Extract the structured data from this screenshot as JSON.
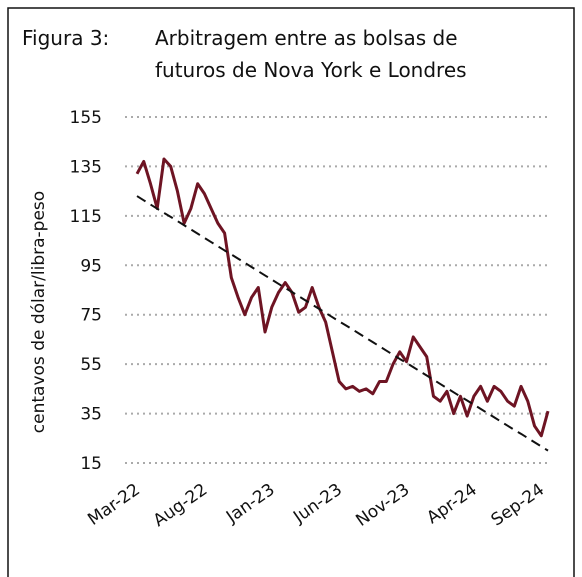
{
  "chart_data": {
    "type": "line",
    "figure_label": "Figura 3:",
    "title": [
      "Arbitragem entre as bolsas de",
      "futuros de Nova York e Londres"
    ],
    "y_label": "centavos de dólar/libra-peso",
    "categories": [
      "Mar-22",
      null,
      null,
      null,
      null,
      null,
      null,
      null,
      null,
      null,
      "Aug-22",
      null,
      null,
      null,
      null,
      null,
      null,
      null,
      null,
      null,
      "Jan-23",
      null,
      null,
      null,
      null,
      null,
      null,
      null,
      null,
      null,
      "Jun-23",
      null,
      null,
      null,
      null,
      null,
      null,
      null,
      null,
      null,
      "Nov-23",
      null,
      null,
      null,
      null,
      null,
      null,
      null,
      null,
      null,
      "Apr-24",
      null,
      null,
      null,
      null,
      null,
      null,
      null,
      null,
      null,
      "Sep-24",
      null
    ],
    "series": [
      {
        "color": "#6e1423",
        "dashed": false,
        "values": [
          132,
          137,
          128,
          118,
          138,
          135,
          125,
          112,
          118,
          128,
          124,
          118,
          112,
          108,
          90,
          82,
          75,
          82,
          86,
          68,
          78,
          84,
          88,
          84,
          76,
          78,
          86,
          78,
          72,
          60,
          48,
          45,
          46,
          44,
          45,
          43,
          48,
          48,
          55,
          60,
          56,
          66,
          62,
          58,
          42,
          40,
          44,
          35,
          42,
          34,
          42,
          46,
          40,
          46,
          44,
          40,
          38,
          46,
          40,
          30,
          26,
          36
        ]
      },
      {
        "color": "#111111",
        "dashed": true,
        "values": [
          123,
          121.3,
          119.6,
          117.9,
          116.2,
          114.6,
          112.9,
          111.2,
          109.5,
          107.8,
          106.1,
          104.4,
          102.7,
          101,
          99.4,
          97.7,
          96,
          94.3,
          92.6,
          90.9,
          89.2,
          87.5,
          85.8,
          84.2,
          82.5,
          80.8,
          79.1,
          77.4,
          75.7,
          74,
          72.3,
          70.7,
          69,
          67.3,
          65.6,
          63.9,
          62.2,
          60.5,
          58.8,
          57.1,
          55.5,
          53.8,
          52.1,
          50.4,
          48.7,
          47,
          45.3,
          43.6,
          41.9,
          40.3,
          38.6,
          36.9,
          35.2,
          33.5,
          31.8,
          30.1,
          28.4,
          26.8,
          25.1,
          23.4,
          21.7,
          20
        ]
      }
    ],
    "ylim": [
      15,
      155
    ],
    "yticks": [
      15,
      35,
      55,
      75,
      95,
      115,
      135,
      155
    ],
    "grid": true
  }
}
